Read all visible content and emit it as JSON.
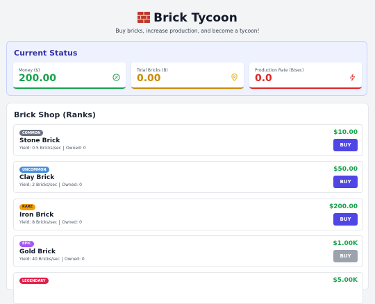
{
  "header": {
    "title": "Brick Tycoon",
    "subtitle": "Buy bricks, increase production, and become a tycoon!"
  },
  "status": {
    "title": "Current Status",
    "cards": [
      {
        "label": "Money ($)",
        "value": "200.00"
      },
      {
        "label": "Total Bricks (B)",
        "value": "0.00"
      },
      {
        "label": "Production Rate (B/sec)",
        "value": "0.0"
      }
    ]
  },
  "shop": {
    "title": "Brick Shop (Ranks)",
    "button": "BUY",
    "items": [
      {
        "rank": "COMMON",
        "name": "Stone Brick",
        "yield": "Yield: 0.5 Bricks/sec",
        "owned": "Owned: 0",
        "price": "$10.00"
      },
      {
        "rank": "UNCOMMON",
        "name": "Clay Brick",
        "yield": "Yield: 2 Bricks/sec",
        "owned": "Owned: 0",
        "price": "$50.00"
      },
      {
        "rank": "RARE",
        "name": "Iron Brick",
        "yield": "Yield: 8 Bricks/sec",
        "owned": "Owned: 0",
        "price": "$200.00"
      },
      {
        "rank": "EPIC",
        "name": "Gold Brick",
        "yield": "Yield: 40 Bricks/sec",
        "owned": "Owned: 0",
        "price": "$1.00K"
      },
      {
        "rank": "LEGENDARY",
        "price": "$5.00K"
      }
    ]
  }
}
